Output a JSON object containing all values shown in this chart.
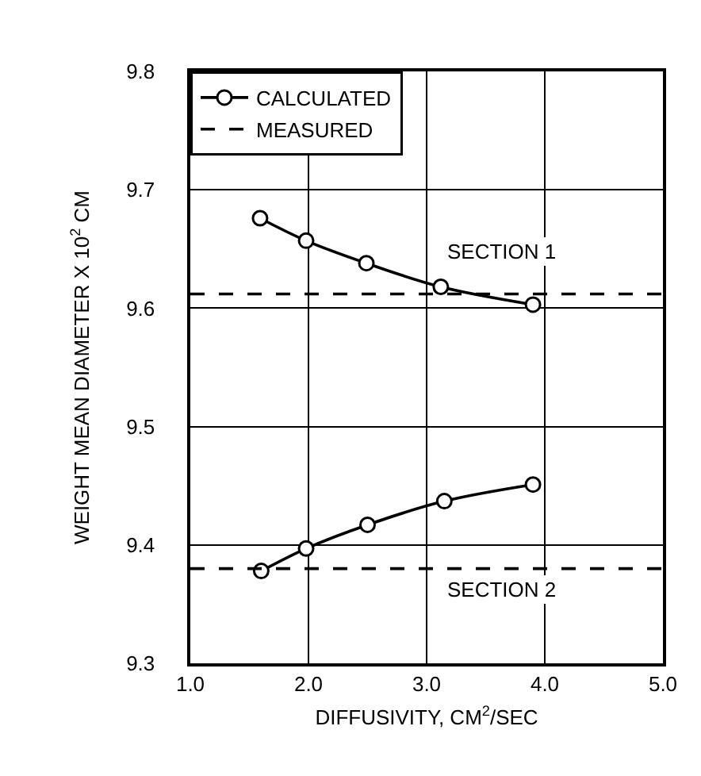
{
  "chart_data": {
    "type": "line",
    "xlabel": "DIFFUSIVITY, CM$^{2}$/SEC",
    "ylabel": "WEIGHT MEAN DIAMETER X 10$^{2}$ CM",
    "xlim": [
      1.0,
      5.0
    ],
    "xticks": [
      {
        "value": 1,
        "label": "1.0"
      },
      {
        "value": 2,
        "label": "2.0"
      },
      {
        "value": 3,
        "label": "3.0"
      },
      {
        "value": 4,
        "label": "4.0"
      },
      {
        "value": 5,
        "label": "5.0"
      }
    ],
    "ylim": [
      9.3,
      9.8
    ],
    "yticks": [
      9.3,
      9.4,
      9.5,
      9.6,
      9.7,
      9.8
    ],
    "grid": true,
    "legend": "top left",
    "series": [
      {
        "name": "CALCULATED",
        "color": "#000000",
        "marker": "circle",
        "line_style": "solid",
        "x": [
          1.59,
          1.98,
          2.49,
          3.12,
          3.9
        ],
        "values": [
          9.676,
          9.657,
          9.638,
          9.618,
          9.603
        ]
      },
      {
        "name": "MEASURED",
        "color": "#000000",
        "marker": "none",
        "line_style": "dashed",
        "x": [
          1.0,
          5.0
        ],
        "values": [
          9.612,
          9.612
        ]
      },
      {
        "color": "#000000",
        "marker": "circle",
        "line_style": "solid",
        "x": [
          1.6,
          1.98,
          2.5,
          3.15,
          3.9
        ],
        "values": [
          9.378,
          9.397,
          9.417,
          9.437,
          9.451
        ]
      },
      {
        "color": "#000000",
        "marker": "none",
        "line_style": "dashed",
        "x": [
          1.0,
          5.0
        ],
        "values": [
          9.38,
          9.38
        ]
      }
    ],
    "annotations": [
      "SECTION 1",
      "SECTION 2"
    ]
  }
}
